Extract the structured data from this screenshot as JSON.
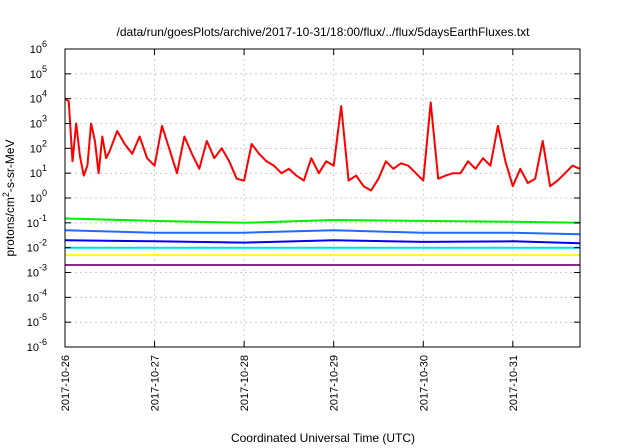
{
  "chart_data": {
    "type": "line",
    "title": "/data/run/goesPlots/archive/2017-10-31/18:00/flux/../flux/5daysEarthFluxes.txt",
    "xlabel": "Coordinated Universal Time (UTC)",
    "ylabel": "protons/cm²-s-sr-MeV",
    "ylabel_parts": {
      "pre": "protons/cm",
      "sup": "2",
      "post": "-s-sr-MeV"
    },
    "yscale": "log",
    "ylim": [
      1e-06,
      1000000.0
    ],
    "ytick_labels": [
      {
        "value": 1e-06,
        "base": "10",
        "exp": "-6"
      },
      {
        "value": 1e-05,
        "base": "10",
        "exp": "-5"
      },
      {
        "value": 0.0001,
        "base": "10",
        "exp": "-4"
      },
      {
        "value": 0.001,
        "base": "10",
        "exp": "-3"
      },
      {
        "value": 0.01,
        "base": "10",
        "exp": "-2"
      },
      {
        "value": 0.1,
        "base": "10",
        "exp": "-1"
      },
      {
        "value": 1,
        "base": "10",
        "exp": "0"
      },
      {
        "value": 10.0,
        "base": "10",
        "exp": "1"
      },
      {
        "value": 100.0,
        "base": "10",
        "exp": "2"
      },
      {
        "value": 1000.0,
        "base": "10",
        "exp": "3"
      },
      {
        "value": 10000.0,
        "base": "10",
        "exp": "4"
      },
      {
        "value": 100000.0,
        "base": "10",
        "exp": "5"
      },
      {
        "value": 1000000.0,
        "base": "10",
        "exp": "6"
      }
    ],
    "xlim": [
      "2017-10-26T00:00",
      "2017-10-31T18:00"
    ],
    "xtick_labels": [
      "2017-10-26",
      "2017-10-27",
      "2017-10-28",
      "2017-10-29",
      "2017-10-30",
      "2017-10-31"
    ],
    "grid": true,
    "series": [
      {
        "color": "#ff0000",
        "x": [
          "2017-10-26T00:00",
          "2017-10-26T01:00",
          "2017-10-26T02:00",
          "2017-10-26T03:00",
          "2017-10-26T04:00",
          "2017-10-26T05:00",
          "2017-10-26T06:00",
          "2017-10-26T07:00",
          "2017-10-26T08:00",
          "2017-10-26T09:00",
          "2017-10-26T10:00",
          "2017-10-26T11:00",
          "2017-10-26T12:00",
          "2017-10-26T14:00",
          "2017-10-26T16:00",
          "2017-10-26T18:00",
          "2017-10-26T20:00",
          "2017-10-26T22:00",
          "2017-10-27T00:00",
          "2017-10-27T02:00",
          "2017-10-27T04:00",
          "2017-10-27T06:00",
          "2017-10-27T08:00",
          "2017-10-27T10:00",
          "2017-10-27T12:00",
          "2017-10-27T14:00",
          "2017-10-27T16:00",
          "2017-10-27T18:00",
          "2017-10-27T20:00",
          "2017-10-27T22:00",
          "2017-10-28T00:00",
          "2017-10-28T02:00",
          "2017-10-28T04:00",
          "2017-10-28T06:00",
          "2017-10-28T08:00",
          "2017-10-28T10:00",
          "2017-10-28T12:00",
          "2017-10-28T14:00",
          "2017-10-28T16:00",
          "2017-10-28T18:00",
          "2017-10-28T20:00",
          "2017-10-28T22:00",
          "2017-10-29T00:00",
          "2017-10-29T02:00",
          "2017-10-29T04:00",
          "2017-10-29T06:00",
          "2017-10-29T08:00",
          "2017-10-29T10:00",
          "2017-10-29T12:00",
          "2017-10-29T14:00",
          "2017-10-29T16:00",
          "2017-10-29T18:00",
          "2017-10-29T20:00",
          "2017-10-29T22:00",
          "2017-10-30T00:00",
          "2017-10-30T02:00",
          "2017-10-30T04:00",
          "2017-10-30T06:00",
          "2017-10-30T08:00",
          "2017-10-30T10:00",
          "2017-10-30T12:00",
          "2017-10-30T14:00",
          "2017-10-30T16:00",
          "2017-10-30T18:00",
          "2017-10-30T20:00",
          "2017-10-30T22:00",
          "2017-10-31T00:00",
          "2017-10-31T02:00",
          "2017-10-31T04:00",
          "2017-10-31T06:00",
          "2017-10-31T08:00",
          "2017-10-31T10:00",
          "2017-10-31T12:00",
          "2017-10-31T14:00",
          "2017-10-31T16:00",
          "2017-10-31T18:00"
        ],
        "values": [
          10000,
          8000,
          30,
          1000,
          50,
          8,
          20,
          1000,
          200,
          10,
          300,
          40,
          80,
          500,
          150,
          60,
          300,
          40,
          20,
          800,
          90,
          10,
          300,
          60,
          15,
          200,
          40,
          100,
          30,
          6,
          5,
          150,
          60,
          30,
          20,
          10,
          15,
          8,
          5,
          40,
          10,
          30,
          20,
          5000,
          5,
          8,
          3,
          2,
          6,
          30,
          15,
          25,
          20,
          10,
          5,
          7000,
          6,
          8,
          10,
          10,
          30,
          15,
          40,
          20,
          800,
          30,
          3,
          15,
          4,
          6,
          200,
          3,
          5,
          10,
          20,
          15
        ]
      },
      {
        "color": "#00ee00",
        "x": [
          "2017-10-26T00:00",
          "2017-10-27T00:00",
          "2017-10-28T00:00",
          "2017-10-29T00:00",
          "2017-10-30T00:00",
          "2017-10-31T00:00",
          "2017-10-31T18:00"
        ],
        "values": [
          0.15,
          0.12,
          0.1,
          0.13,
          0.12,
          0.11,
          0.1
        ]
      },
      {
        "color": "#1e6bff",
        "x": [
          "2017-10-26T00:00",
          "2017-10-27T00:00",
          "2017-10-28T00:00",
          "2017-10-29T00:00",
          "2017-10-30T00:00",
          "2017-10-31T00:00",
          "2017-10-31T18:00"
        ],
        "values": [
          0.05,
          0.04,
          0.04,
          0.05,
          0.04,
          0.04,
          0.035
        ]
      },
      {
        "color": "#0000ee",
        "x": [
          "2017-10-26T00:00",
          "2017-10-27T00:00",
          "2017-10-28T00:00",
          "2017-10-29T00:00",
          "2017-10-30T00:00",
          "2017-10-31T00:00",
          "2017-10-31T18:00"
        ],
        "values": [
          0.02,
          0.018,
          0.016,
          0.02,
          0.017,
          0.018,
          0.015
        ]
      },
      {
        "color": "#00dddd",
        "x": [
          "2017-10-26T00:00",
          "2017-10-27T00:00",
          "2017-10-28T00:00",
          "2017-10-29T00:00",
          "2017-10-30T00:00",
          "2017-10-31T00:00",
          "2017-10-31T18:00"
        ],
        "values": [
          0.01,
          0.01,
          0.01,
          0.01,
          0.01,
          0.01,
          0.01
        ]
      },
      {
        "color": "#ffff00",
        "x": [
          "2017-10-26T00:00",
          "2017-10-27T00:00",
          "2017-10-28T00:00",
          "2017-10-29T00:00",
          "2017-10-30T00:00",
          "2017-10-31T00:00",
          "2017-10-31T18:00"
        ],
        "values": [
          0.005,
          0.005,
          0.005,
          0.005,
          0.005,
          0.005,
          0.005
        ]
      },
      {
        "color": "#8b2a8b",
        "x": [
          "2017-10-26T00:00",
          "2017-10-27T00:00",
          "2017-10-28T00:00",
          "2017-10-29T00:00",
          "2017-10-30T00:00",
          "2017-10-31T00:00",
          "2017-10-31T18:00"
        ],
        "values": [
          0.002,
          0.002,
          0.002,
          0.002,
          0.002,
          0.002,
          0.002
        ]
      }
    ]
  }
}
